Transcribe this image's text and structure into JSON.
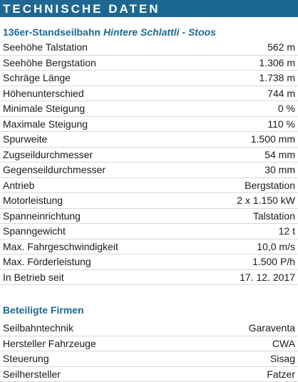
{
  "header": {
    "title": "TECHNISCHE DATEN"
  },
  "subtitle": {
    "main": "136er-Standseilbahn",
    "italic": "Hintere Schlattli - Stoos"
  },
  "table": {
    "rows": [
      [
        "Seehöhe Talstation",
        "562 m"
      ],
      [
        "Seehöhe Bergstation",
        "1.306 m"
      ],
      [
        "Schräge Länge",
        "1.738 m"
      ],
      [
        "Höhenunterschied",
        "744 m"
      ],
      [
        "Minimale Steigung",
        "0 %"
      ],
      [
        "Maximale Steigung",
        "110 %"
      ],
      [
        "Spurweite",
        "1.500 mm"
      ],
      [
        "Zugseildurchmesser",
        "54 mm"
      ],
      [
        "Gegenseildurchmesser",
        "30 mm"
      ],
      [
        "Antrieb",
        "Bergstation"
      ],
      [
        "Motorleistung",
        "2 x 1.150 kW"
      ],
      [
        "Spanneinrichtung",
        "Talstation"
      ],
      [
        "Spanngewicht",
        "12 t"
      ],
      [
        "Max. Fahrgeschwindigkeit",
        "10,0 m/s"
      ],
      [
        "Max. Förderleistung",
        "1.500 P/h"
      ],
      [
        "In Betrieb seit",
        "17. 12. 2017"
      ]
    ]
  },
  "companies": {
    "title": "Beteiligte Firmen",
    "rows": [
      [
        "Seilbahntechnik",
        "Garaventa"
      ],
      [
        "Hersteller Fahrzeuge",
        "CWA"
      ],
      [
        "Steuerung",
        "Sisag"
      ],
      [
        "Seilhersteller",
        "Fatzer"
      ]
    ]
  }
}
